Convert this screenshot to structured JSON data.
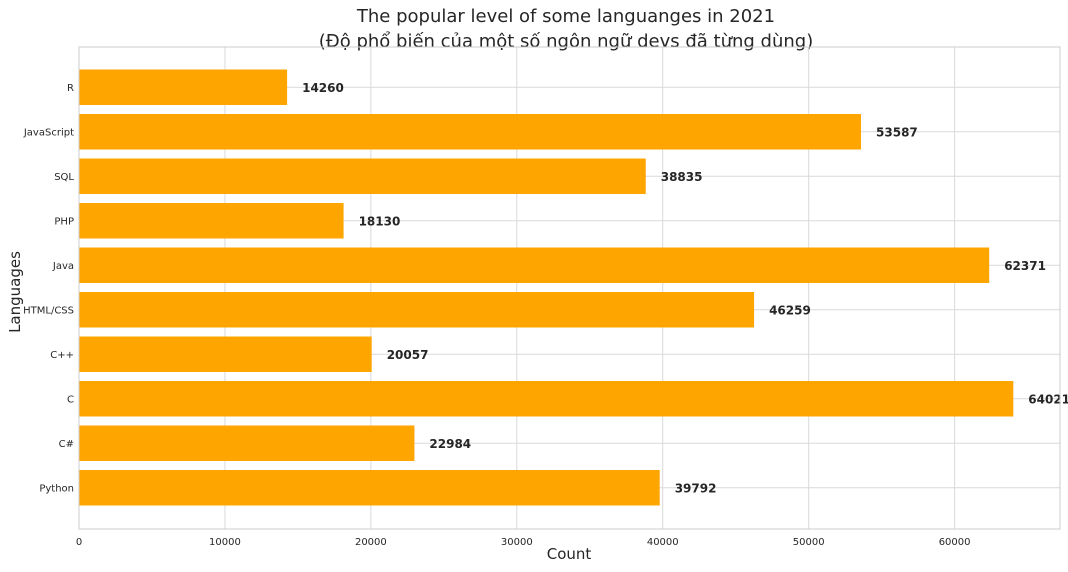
{
  "chart_data": {
    "type": "bar",
    "orientation": "horizontal",
    "title_line1": "The popular level of some languanges in 2021",
    "title_line2": "(Độ phổ biến của một số ngôn ngữ devs đã từng dùng)",
    "xlabel": "Count",
    "ylabel": "Languages",
    "categories": [
      "Python",
      "C#",
      "C",
      "C++",
      "HTML/CSS",
      "Java",
      "PHP",
      "SQL",
      "JavaScript",
      "R"
    ],
    "values": [
      39792,
      22984,
      64021,
      20057,
      46259,
      62371,
      18130,
      38835,
      53587,
      14260
    ],
    "value_labels": [
      "39792",
      "22984",
      "64021",
      "20057",
      "46259",
      "62371",
      "18130",
      "38835",
      "53587",
      "14260"
    ],
    "xticks": [
      0,
      10000,
      20000,
      30000,
      40000,
      50000,
      60000
    ],
    "xtick_labels": [
      "0",
      "10000",
      "20000",
      "30000",
      "40000",
      "50000",
      "60000"
    ],
    "xlim": [
      0,
      67222
    ],
    "grid": true,
    "bar_color": "#ffa500",
    "grid_color": "#d9d9d9",
    "text_color": "#262626"
  }
}
